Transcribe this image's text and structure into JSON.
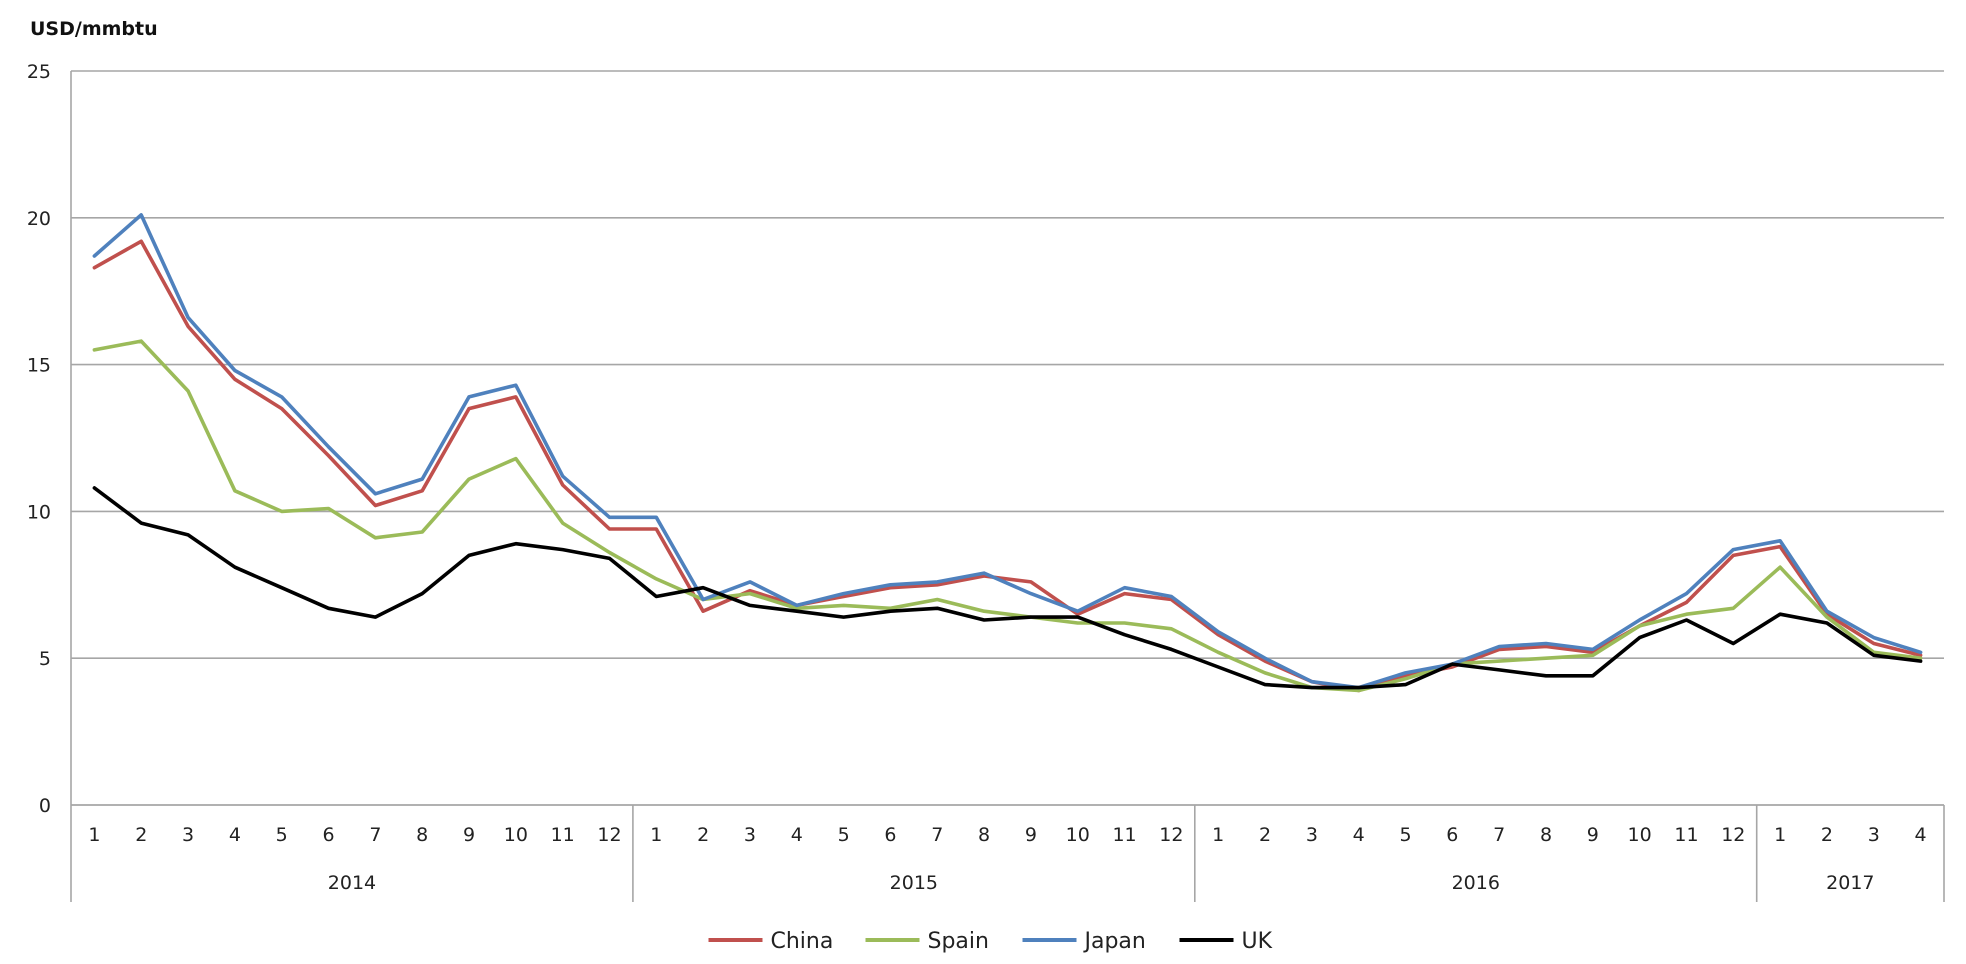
{
  "chart_data": {
    "type": "line",
    "title": "",
    "ylabel": "USD/mmbtu",
    "xlabel": "",
    "ylim": [
      0,
      25
    ],
    "yticks": [
      "0",
      "5",
      "10",
      "15",
      "20",
      "25"
    ],
    "grid": true,
    "legend_placement": "bottom-center",
    "years": [
      {
        "label": "2014",
        "months": [
          "1",
          "2",
          "3",
          "4",
          "5",
          "6",
          "7",
          "8",
          "9",
          "10",
          "11",
          "12"
        ]
      },
      {
        "label": "2015",
        "months": [
          "1",
          "2",
          "3",
          "4",
          "5",
          "6",
          "7",
          "8",
          "9",
          "10",
          "11",
          "12"
        ]
      },
      {
        "label": "2016",
        "months": [
          "1",
          "2",
          "3",
          "4",
          "5",
          "6",
          "7",
          "8",
          "9",
          "10",
          "11",
          "12"
        ]
      },
      {
        "label": "2017",
        "months": [
          "1",
          "2",
          "3",
          "4"
        ]
      }
    ],
    "series": [
      {
        "name": "China",
        "color": "#c0504d",
        "values": [
          18.3,
          19.2,
          16.3,
          14.5,
          13.5,
          11.9,
          10.2,
          10.7,
          13.5,
          13.9,
          10.9,
          9.4,
          9.4,
          6.6,
          7.3,
          6.8,
          7.1,
          7.4,
          7.5,
          7.8,
          7.6,
          6.5,
          7.2,
          7.0,
          5.8,
          4.9,
          4.2,
          3.9,
          4.4,
          4.7,
          5.3,
          5.4,
          5.2,
          6.1,
          6.9,
          8.5,
          8.8,
          6.5,
          5.5,
          5.1
        ]
      },
      {
        "name": "Spain",
        "color": "#9bbb59",
        "values": [
          15.5,
          15.8,
          14.1,
          10.7,
          10.0,
          10.1,
          9.1,
          9.3,
          11.1,
          11.8,
          9.6,
          8.6,
          7.7,
          7.0,
          7.2,
          6.7,
          6.8,
          6.7,
          7.0,
          6.6,
          6.4,
          6.2,
          6.2,
          6.0,
          5.2,
          4.5,
          4.0,
          3.9,
          4.3,
          4.8,
          4.9,
          5.0,
          5.1,
          6.1,
          6.5,
          6.7,
          8.1,
          6.4,
          5.2,
          5.0
        ]
      },
      {
        "name": "Japan",
        "color": "#4f81bd",
        "values": [
          18.7,
          20.1,
          16.6,
          14.8,
          13.9,
          12.2,
          10.6,
          11.1,
          13.9,
          14.3,
          11.2,
          9.8,
          9.8,
          7.0,
          7.6,
          6.8,
          7.2,
          7.5,
          7.6,
          7.9,
          7.2,
          6.6,
          7.4,
          7.1,
          5.9,
          5.0,
          4.2,
          4.0,
          4.5,
          4.8,
          5.4,
          5.5,
          5.3,
          6.3,
          7.2,
          8.7,
          9.0,
          6.6,
          5.7,
          5.2
        ]
      },
      {
        "name": "UK",
        "color": "#000000",
        "values": [
          10.8,
          9.6,
          9.2,
          8.1,
          7.4,
          6.7,
          6.4,
          7.2,
          8.5,
          8.9,
          8.7,
          8.4,
          7.1,
          7.4,
          6.8,
          6.6,
          6.4,
          6.6,
          6.7,
          6.3,
          6.4,
          6.4,
          5.8,
          5.3,
          4.7,
          4.1,
          4.0,
          4.0,
          4.1,
          4.8,
          4.6,
          4.4,
          4.4,
          5.7,
          6.3,
          5.5,
          6.5,
          6.2,
          5.1,
          4.9
        ]
      }
    ]
  }
}
